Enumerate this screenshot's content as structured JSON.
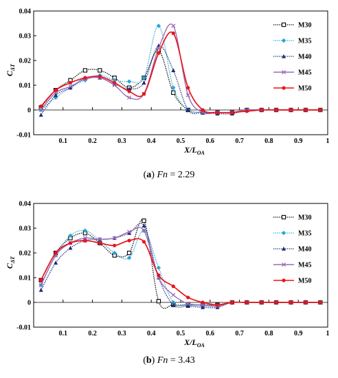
{
  "chart_data": [
    {
      "type": "line",
      "caption": {
        "label": "a",
        "var": "Fn",
        "rest": " = 2.29"
      },
      "ylabel": {
        "main": "C",
        "sub": "ΔT"
      },
      "xlabel": {
        "main": "X/L",
        "sub": "OA"
      },
      "xlim": [
        0,
        1
      ],
      "ylim": [
        -0.01,
        0.04
      ],
      "xticks": [
        0.1,
        0.2,
        0.3,
        0.4,
        0.5,
        0.6,
        0.7,
        0.8,
        0.9,
        1
      ],
      "xtick_labels": [
        "0.1",
        "0.2",
        "0.3",
        "0.4",
        "0.5",
        "0.6",
        "0.7",
        "0.8",
        "0.9",
        "1"
      ],
      "yticks": [
        -0.01,
        0,
        0.01,
        0.02,
        0.03,
        0.04
      ],
      "ytick_labels": [
        "-0.01",
        "0",
        "0.01",
        "0.02",
        "0.03",
        "0.04"
      ],
      "legend_position": "top-right",
      "x": [
        0.025,
        0.075,
        0.125,
        0.175,
        0.225,
        0.275,
        0.325,
        0.375,
        0.425,
        0.475,
        0.525,
        0.575,
        0.625,
        0.675,
        0.725,
        0.775,
        0.825,
        0.875,
        0.925,
        0.975
      ],
      "series": [
        {
          "name": "M30",
          "color": "#000000",
          "style": "dotted",
          "marker": "square",
          "values": [
            0.001,
            0.008,
            0.012,
            0.016,
            0.016,
            0.013,
            0.009,
            0.013,
            0.024,
            0.007,
            0.0,
            -0.001,
            -0.001,
            -0.001,
            0.0,
            0.0,
            0.0,
            0.0,
            0.0,
            0.0
          ]
        },
        {
          "name": "M35",
          "color": "#2aa4d6",
          "style": "dotted",
          "marker": "diamond",
          "values": [
            0.0,
            0.005,
            0.009,
            0.012,
            0.014,
            0.012,
            0.0115,
            0.013,
            0.034,
            0.009,
            0.0,
            -0.001,
            -0.001,
            -0.001,
            0.0,
            0.0,
            0.0,
            0.0,
            0.0,
            0.0
          ]
        },
        {
          "name": "M40",
          "color": "#1c2a7a",
          "style": "dotted",
          "marker": "triangle",
          "values": [
            -0.002,
            0.006,
            0.009,
            0.013,
            0.013,
            0.0105,
            0.0085,
            0.011,
            0.026,
            0.016,
            0.0,
            -0.001,
            -0.0015,
            -0.0015,
            0.0,
            0.0,
            0.0,
            0.0,
            0.0,
            0.0
          ]
        },
        {
          "name": "M45",
          "color": "#9b6bb5",
          "style": "solid",
          "marker": "x",
          "values": [
            0.0,
            0.007,
            0.0095,
            0.0125,
            0.013,
            0.01,
            0.005,
            0.0065,
            0.025,
            0.034,
            0.006,
            -0.001,
            -0.001,
            -0.001,
            0.0,
            0.0,
            0.0,
            0.0,
            0.0,
            0.0
          ]
        },
        {
          "name": "M50",
          "color": "#e8141c",
          "style": "solid",
          "marker": "circle",
          "values": [
            0.0015,
            0.008,
            0.011,
            0.013,
            0.0135,
            0.011,
            0.0075,
            0.0065,
            0.023,
            0.031,
            0.009,
            0.0,
            -0.001,
            -0.001,
            -0.0005,
            0.0,
            0.0,
            0.0,
            0.0,
            0.0
          ]
        }
      ]
    },
    {
      "type": "line",
      "caption": {
        "label": "b",
        "var": "Fn",
        "rest": " = 3.43"
      },
      "ylabel": {
        "main": "C",
        "sub": "ΔT"
      },
      "xlabel": {
        "main": "X/L",
        "sub": "OA"
      },
      "xlim": [
        0,
        1
      ],
      "ylim": [
        -0.01,
        0.04
      ],
      "xticks": [
        0.1,
        0.2,
        0.3,
        0.4,
        0.5,
        0.6,
        0.7,
        0.8,
        0.9,
        1
      ],
      "xtick_labels": [
        "0.1",
        "0.2",
        "0.3",
        "0.4",
        "0.5",
        "0.6",
        "0.7",
        "0.8",
        "0.9",
        "1"
      ],
      "yticks": [
        -0.01,
        0,
        0.01,
        0.02,
        0.03,
        0.04
      ],
      "ytick_labels": [
        "-0.01",
        "0",
        "0.01",
        "0.02",
        "0.03",
        "0.04"
      ],
      "legend_position": "top-right",
      "x": [
        0.025,
        0.075,
        0.125,
        0.175,
        0.225,
        0.275,
        0.325,
        0.375,
        0.425,
        0.475,
        0.525,
        0.575,
        0.625,
        0.675,
        0.725,
        0.775,
        0.825,
        0.875,
        0.925,
        0.975
      ],
      "series": [
        {
          "name": "M30",
          "color": "#000000",
          "style": "dotted",
          "marker": "square",
          "values": [
            0.009,
            0.02,
            0.026,
            0.028,
            0.024,
            0.019,
            0.02,
            0.033,
            0.0005,
            -0.001,
            -0.001,
            -0.001,
            -0.001,
            0.0,
            0.0,
            0.0,
            0.0,
            0.0,
            0.0,
            0.0
          ]
        },
        {
          "name": "M35",
          "color": "#2aa4d6",
          "style": "dotted",
          "marker": "diamond",
          "values": [
            0.007,
            0.019,
            0.027,
            0.029,
            0.025,
            0.02,
            0.018,
            0.029,
            0.014,
            0.0,
            -0.001,
            -0.0015,
            -0.0015,
            0.0,
            0.0,
            0.0,
            0.0,
            0.0,
            0.0,
            0.0
          ]
        },
        {
          "name": "M40",
          "color": "#1c2a7a",
          "style": "dotted",
          "marker": "triangle",
          "values": [
            0.005,
            0.016,
            0.022,
            0.025,
            0.0255,
            0.026,
            0.028,
            0.031,
            0.01,
            -0.001,
            -0.0015,
            -0.002,
            -0.002,
            0.0,
            0.0,
            0.0,
            0.0,
            0.0,
            0.0,
            0.0
          ]
        },
        {
          "name": "M45",
          "color": "#9b6bb5",
          "style": "solid",
          "marker": "x",
          "values": [
            0.007,
            0.019,
            0.024,
            0.026,
            0.0255,
            0.026,
            0.0285,
            0.029,
            0.01,
            0.003,
            -0.0005,
            -0.001,
            -0.0015,
            0.0,
            0.0,
            0.0,
            0.0,
            0.0,
            0.0,
            0.0
          ]
        },
        {
          "name": "M50",
          "color": "#e8141c",
          "style": "solid",
          "marker": "circle",
          "values": [
            0.009,
            0.02,
            0.024,
            0.025,
            0.024,
            0.023,
            0.025,
            0.0245,
            0.011,
            0.0065,
            0.002,
            0.0,
            -0.001,
            0.0,
            0.0,
            0.0,
            0.0,
            0.0,
            0.0,
            0.0
          ]
        }
      ]
    }
  ]
}
